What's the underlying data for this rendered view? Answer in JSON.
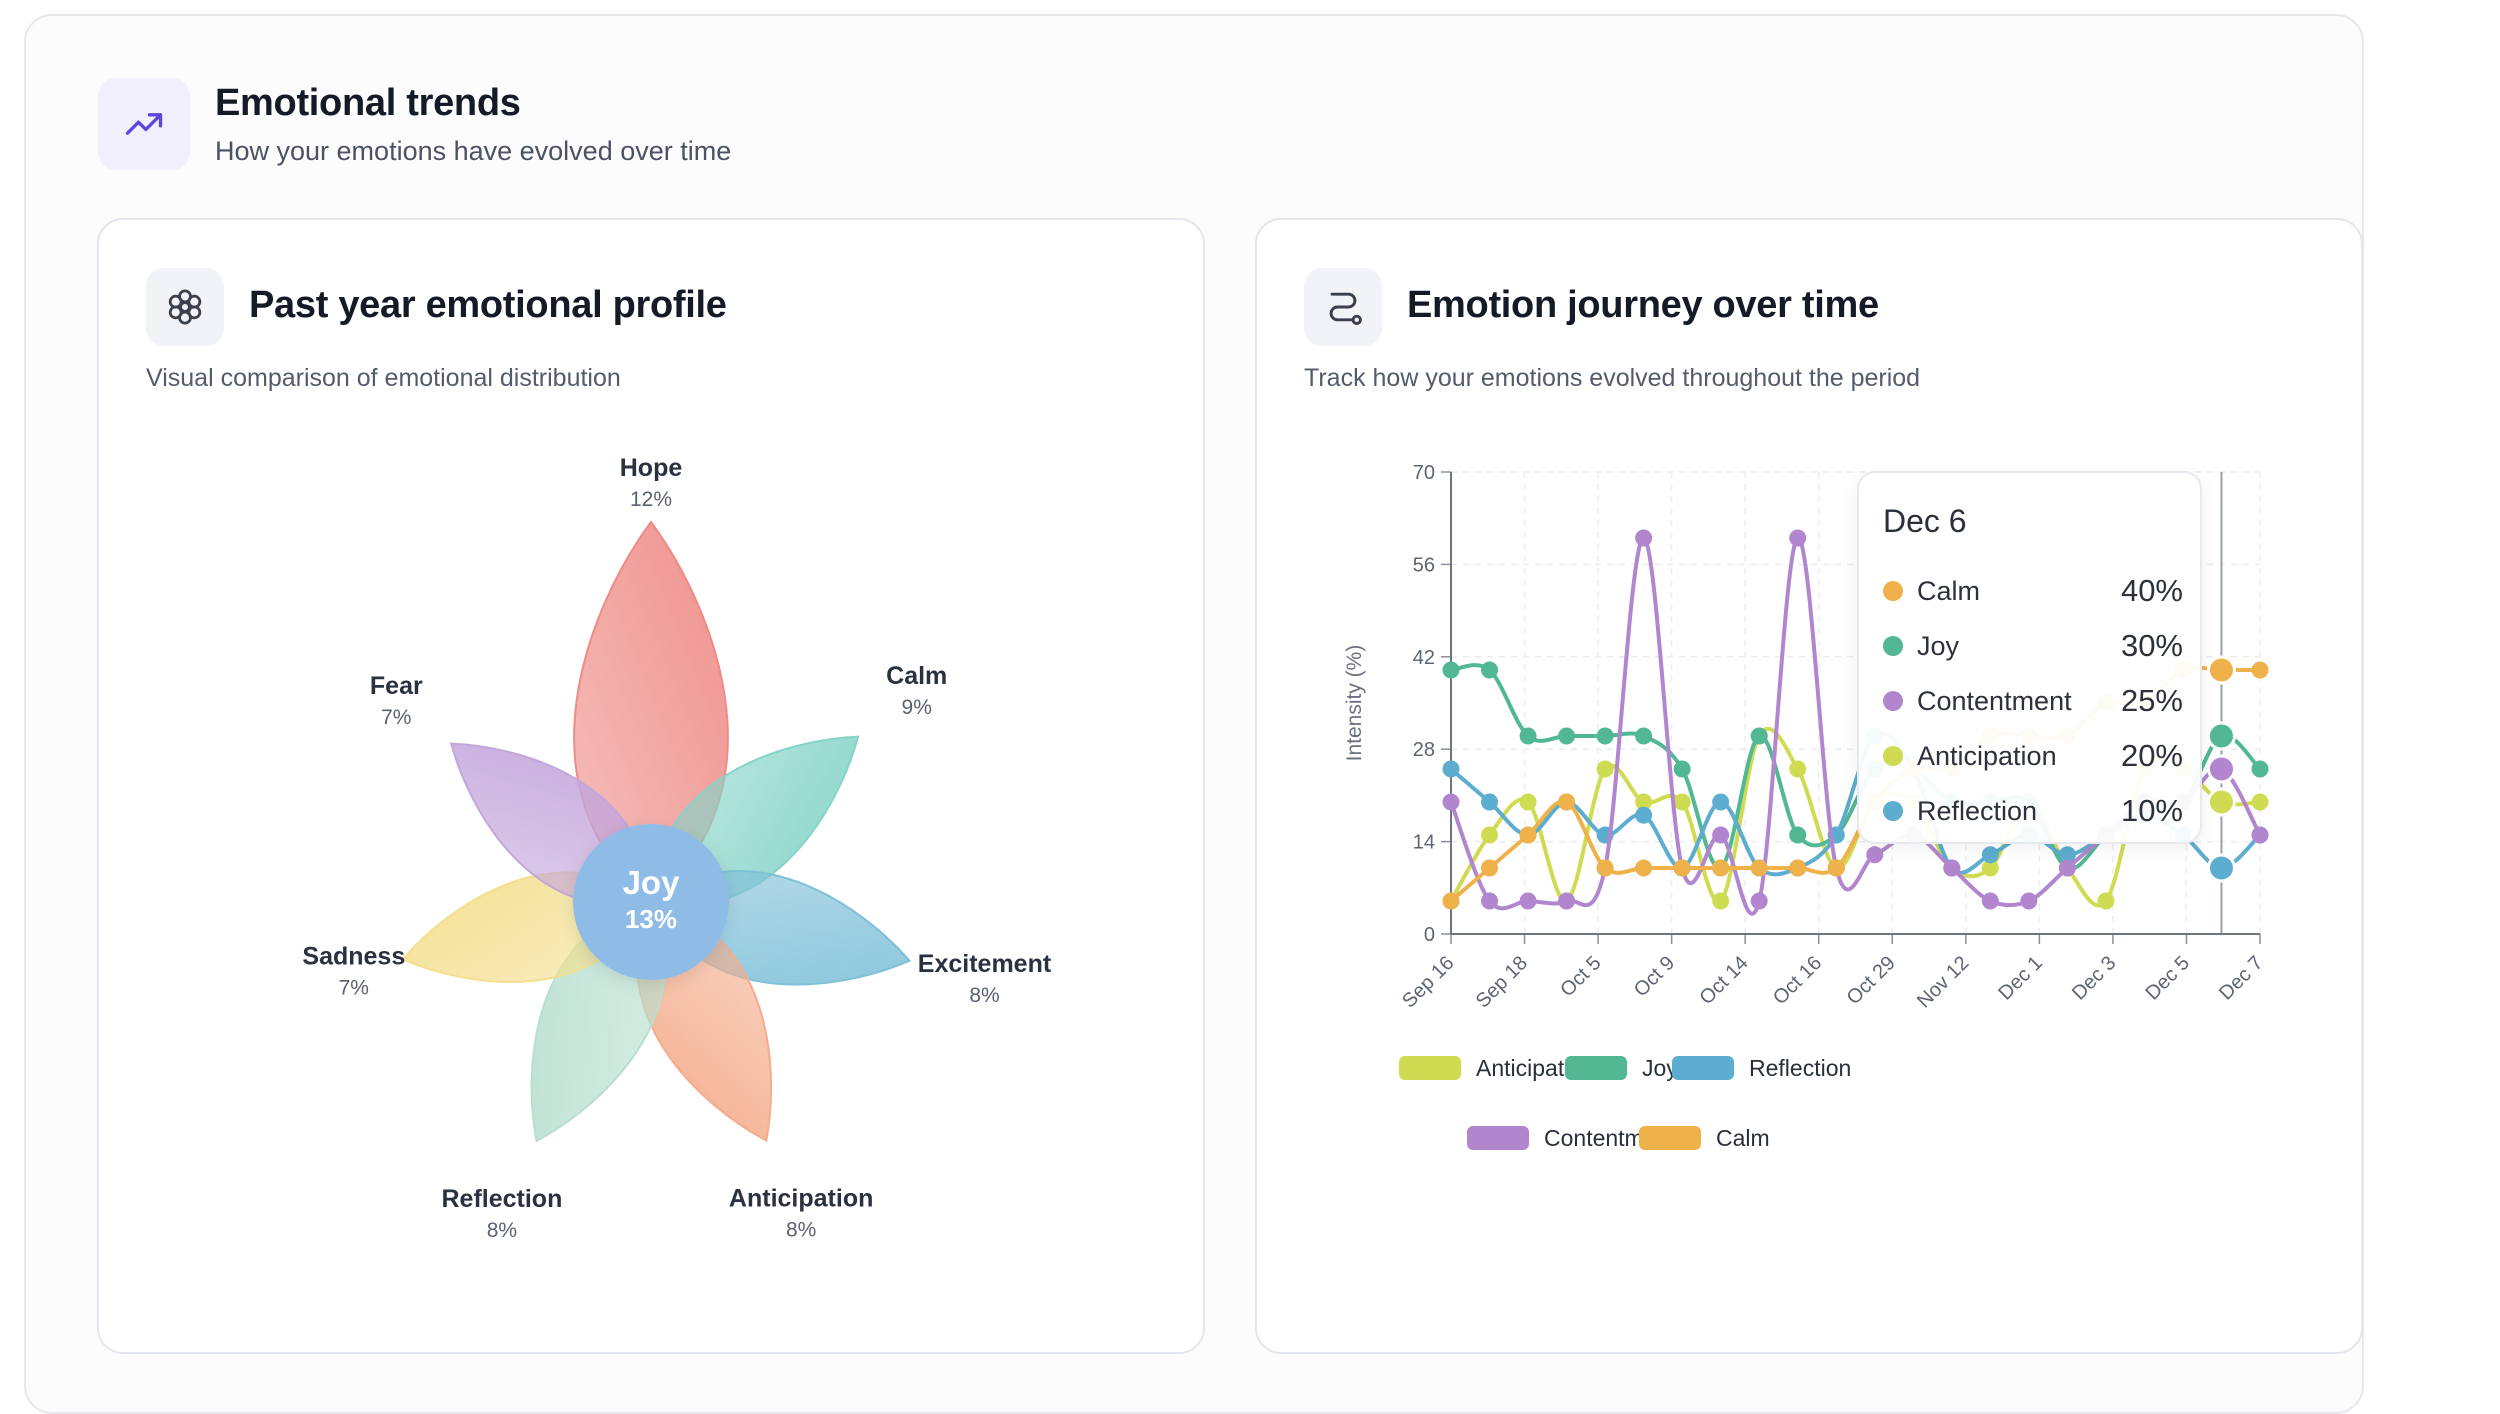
{
  "header": {
    "title": "Emotional trends",
    "subtitle": "How your emotions have evolved over time",
    "icon": "trend-up-icon"
  },
  "profile_panel": {
    "title": "Past year emotional profile",
    "subtitle": "Visual comparison of emotional distribution",
    "icon": "flower-icon",
    "center": {
      "label": "Joy",
      "value": "13%",
      "color": "#8fbce6"
    },
    "petals": [
      {
        "label": "Hope",
        "value": "12%",
        "color": "#ee8b86"
      },
      {
        "label": "Calm",
        "value": "9%",
        "color": "#86d4c8"
      },
      {
        "label": "Excitement",
        "value": "8%",
        "color": "#7fc0d9"
      },
      {
        "label": "Anticipation",
        "value": "8%",
        "color": "#f4ad8c"
      },
      {
        "label": "Reflection",
        "value": "8%",
        "color": "#b8dfcf"
      },
      {
        "label": "Sadness",
        "value": "7%",
        "color": "#f3df8e"
      },
      {
        "label": "Fear",
        "value": "7%",
        "color": "#c3a6dc"
      }
    ]
  },
  "journey_panel": {
    "title": "Emotion journey over time",
    "subtitle": "Track how your emotions evolved throughout the period",
    "icon": "route-icon",
    "tooltip": {
      "date": "Dec 6",
      "rows": [
        {
          "name": "Calm",
          "value": "40%",
          "color": "#efb24a"
        },
        {
          "name": "Joy",
          "value": "30%",
          "color": "#52b894"
        },
        {
          "name": "Contentment",
          "value": "25%",
          "color": "#b286cf"
        },
        {
          "name": "Anticipation",
          "value": "20%",
          "color": "#cfdc52"
        },
        {
          "name": "Reflection",
          "value": "10%",
          "color": "#5cadd0"
        }
      ]
    }
  },
  "chart_data": {
    "type": "line",
    "ylabel": "Intensity (%)",
    "ylim": [
      0,
      70
    ],
    "yticks": [
      0,
      14,
      28,
      42,
      56,
      70
    ],
    "x_tick_labels": [
      "Sep 16",
      "Sep 18",
      "Oct 5",
      "Oct 9",
      "Oct 14",
      "Oct 16",
      "Oct 29",
      "Nov 12",
      "Dec 1",
      "Dec 3",
      "Dec 5",
      "Dec 7"
    ],
    "x_points": 22,
    "series": [
      {
        "name": "Anticipation",
        "color": "#cfdc52",
        "values": [
          5,
          15,
          20,
          5,
          25,
          20,
          20,
          5,
          30,
          25,
          10,
          20,
          20,
          10,
          10,
          20,
          10,
          5,
          25,
          25,
          20,
          20
        ]
      },
      {
        "name": "Joy",
        "color": "#52b894",
        "values": [
          40,
          40,
          30,
          30,
          30,
          30,
          25,
          10,
          30,
          15,
          15,
          25,
          25,
          20,
          20,
          20,
          10,
          15,
          20,
          20,
          30,
          25
        ]
      },
      {
        "name": "Reflection",
        "color": "#5cadd0",
        "values": [
          25,
          20,
          15,
          20,
          15,
          18,
          10,
          20,
          10,
          10,
          15,
          30,
          25,
          10,
          12,
          15,
          12,
          15,
          18,
          15,
          10,
          15
        ]
      },
      {
        "name": "Contentment",
        "color": "#b286cf",
        "values": [
          20,
          5,
          5,
          5,
          10,
          60,
          10,
          15,
          5,
          60,
          10,
          12,
          15,
          10,
          5,
          5,
          10,
          15,
          20,
          20,
          25,
          15
        ]
      },
      {
        "name": "Calm",
        "color": "#efb24a",
        "values": [
          5,
          10,
          15,
          20,
          10,
          10,
          10,
          10,
          10,
          10,
          10,
          20,
          25,
          25,
          30,
          30,
          30,
          35,
          35,
          40,
          40,
          40
        ]
      }
    ],
    "legend": [
      {
        "name": "Anticipation",
        "color": "#cfdc52"
      },
      {
        "name": "Joy",
        "color": "#52b894"
      },
      {
        "name": "Reflection",
        "color": "#5cadd0"
      },
      {
        "name": "Contentment",
        "color": "#b286cf"
      },
      {
        "name": "Calm",
        "color": "#efb24a"
      }
    ],
    "hover_index": 20
  }
}
